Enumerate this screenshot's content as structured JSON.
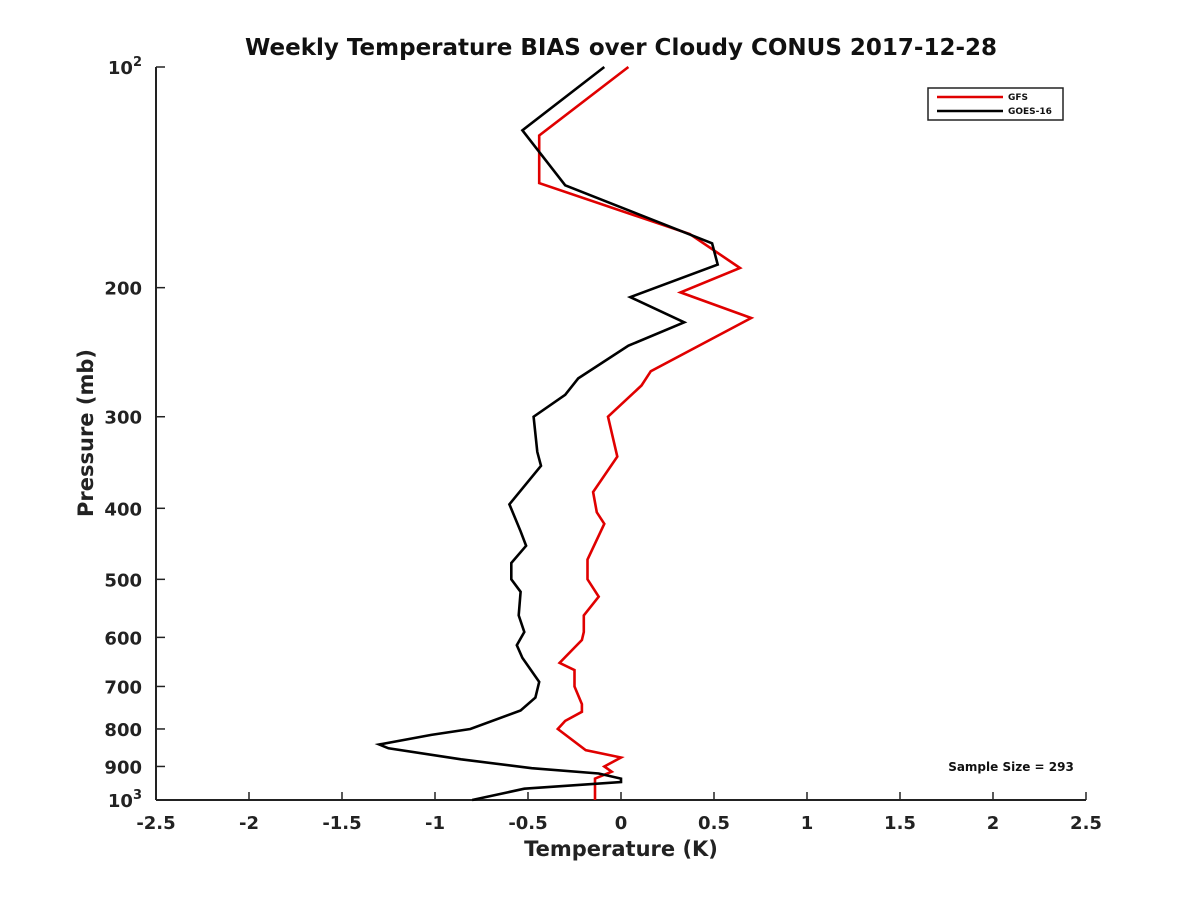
{
  "chart_data": {
    "type": "line",
    "title": "Weekly Temperature BIAS over Cloudy CONUS 2017-12-28",
    "xlabel": "Temperature (K)",
    "ylabel": "Pressure (mb)",
    "xlim": [
      -2.5,
      2.5
    ],
    "ylim": [
      100,
      1000
    ],
    "y_scale": "log",
    "y_reversed": true,
    "grid": false,
    "legend_position": "top-right",
    "x_ticks": [
      -2.5,
      -2,
      -1.5,
      -1,
      -0.5,
      0,
      0.5,
      1,
      1.5,
      2,
      2.5
    ],
    "x_tick_labels": [
      "-2.5",
      "-2",
      "-1.5",
      "-1",
      "-0.5",
      "0",
      "0.5",
      "1",
      "1.5",
      "2",
      "2.5"
    ],
    "y_ticks": [
      {
        "value": 100,
        "label": "10",
        "sup": "2"
      },
      {
        "value": 200,
        "label": "200",
        "sup": ""
      },
      {
        "value": 300,
        "label": "300",
        "sup": ""
      },
      {
        "value": 400,
        "label": "400",
        "sup": ""
      },
      {
        "value": 500,
        "label": "500",
        "sup": ""
      },
      {
        "value": 600,
        "label": "600",
        "sup": ""
      },
      {
        "value": 700,
        "label": "700",
        "sup": ""
      },
      {
        "value": 800,
        "label": "800",
        "sup": ""
      },
      {
        "value": 900,
        "label": "900",
        "sup": ""
      },
      {
        "value": 1000,
        "label": "10",
        "sup": "3"
      }
    ],
    "series": [
      {
        "name": "GFS",
        "color": "#e00000",
        "points": [
          [
            0.04,
            100
          ],
          [
            -0.44,
            124
          ],
          [
            -0.44,
            144
          ],
          [
            0.37,
            169
          ],
          [
            0.64,
            188
          ],
          [
            0.32,
            203
          ],
          [
            0.7,
            220
          ],
          [
            0.16,
            260
          ],
          [
            0.11,
            272
          ],
          [
            -0.07,
            300
          ],
          [
            -0.02,
            340
          ],
          [
            -0.15,
            380
          ],
          [
            -0.13,
            405
          ],
          [
            -0.09,
            420
          ],
          [
            -0.18,
            470
          ],
          [
            -0.18,
            500
          ],
          [
            -0.12,
            528
          ],
          [
            -0.2,
            560
          ],
          [
            -0.2,
            590
          ],
          [
            -0.21,
            605
          ],
          [
            -0.33,
            650
          ],
          [
            -0.25,
            665
          ],
          [
            -0.25,
            700
          ],
          [
            -0.21,
            740
          ],
          [
            -0.21,
            758
          ],
          [
            -0.3,
            780
          ],
          [
            -0.34,
            800
          ],
          [
            -0.19,
            855
          ],
          [
            0.0,
            875
          ],
          [
            -0.09,
            900
          ],
          [
            -0.05,
            915
          ],
          [
            -0.14,
            935
          ],
          [
            -0.14,
            1000
          ]
        ]
      },
      {
        "name": "GOES-16",
        "color": "#000000",
        "points": [
          [
            -0.09,
            100
          ],
          [
            -0.53,
            122
          ],
          [
            -0.3,
            145
          ],
          [
            0.49,
            174
          ],
          [
            0.52,
            186
          ],
          [
            0.05,
            206
          ],
          [
            0.34,
            223
          ],
          [
            0.04,
            240
          ],
          [
            -0.23,
            266
          ],
          [
            -0.3,
            280
          ],
          [
            -0.47,
            300
          ],
          [
            -0.45,
            335
          ],
          [
            -0.43,
            350
          ],
          [
            -0.6,
            395
          ],
          [
            -0.54,
            430
          ],
          [
            -0.51,
            450
          ],
          [
            -0.59,
            475
          ],
          [
            -0.59,
            500
          ],
          [
            -0.54,
            520
          ],
          [
            -0.55,
            560
          ],
          [
            -0.52,
            590
          ],
          [
            -0.56,
            615
          ],
          [
            -0.53,
            640
          ],
          [
            -0.44,
            690
          ],
          [
            -0.46,
            725
          ],
          [
            -0.54,
            755
          ],
          [
            -0.81,
            800
          ],
          [
            -1.02,
            815
          ],
          [
            -1.3,
            840
          ],
          [
            -1.25,
            850
          ],
          [
            -0.86,
            880
          ],
          [
            -0.48,
            905
          ],
          [
            -0.12,
            920
          ],
          [
            0.0,
            935
          ],
          [
            0.0,
            945
          ],
          [
            -0.52,
            965
          ],
          [
            -0.8,
            1000
          ]
        ]
      }
    ],
    "annotation": "Sample Size = 293"
  }
}
